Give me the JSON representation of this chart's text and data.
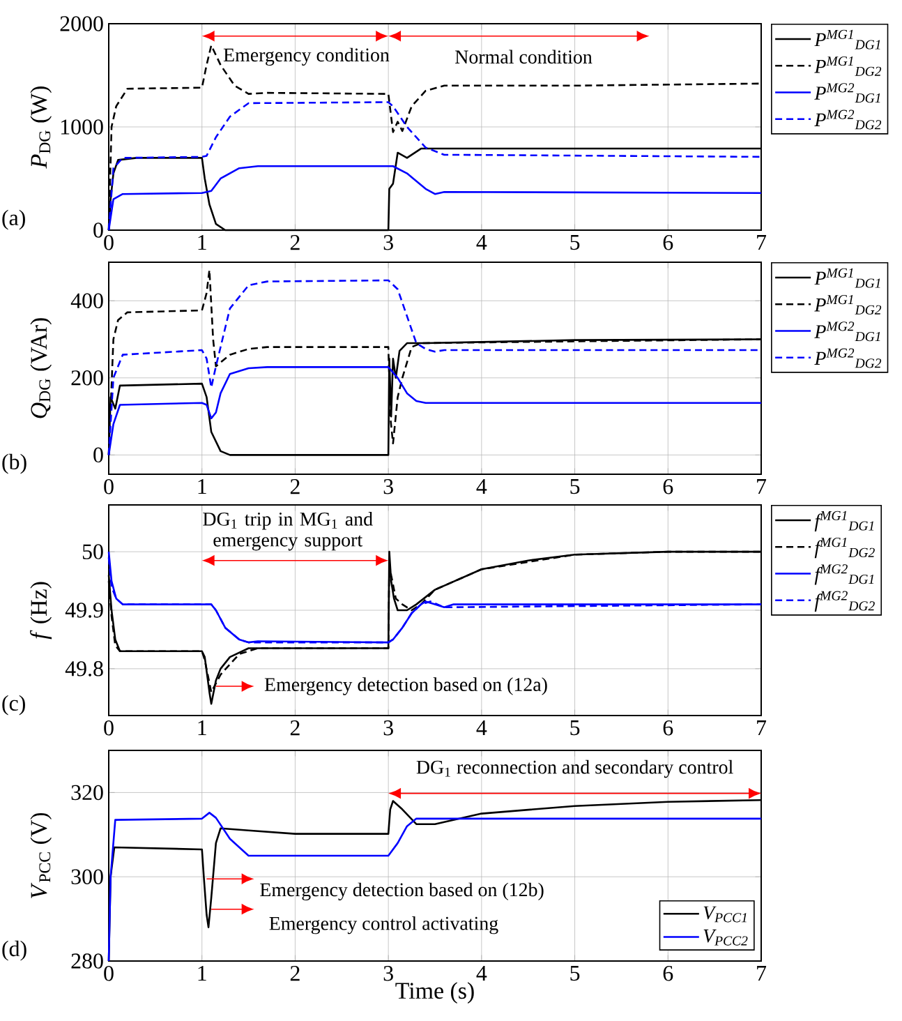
{
  "chart_data": [
    {
      "type": "line",
      "ylabel": "*P*$_{DG}$ (W)",
      "xlim": [
        0,
        7
      ],
      "xticks": [
        0,
        1,
        2,
        3,
        4,
        5,
        6,
        7
      ],
      "ylim": [
        0,
        2000
      ],
      "yticks": [
        0,
        1000,
        2000
      ],
      "grid": true,
      "legend": "right",
      "annotations": [
        "(a)",
        "Emergency condition",
        "Normal condition"
      ],
      "series": [
        {
          "name": "P$^{MG1}$$_{DG1}$",
          "color": "#000000",
          "line_style": "solid",
          "x": [
            0,
            0.02,
            0.05,
            0.1,
            0.3,
            1.0,
            1.03,
            1.08,
            1.15,
            1.25,
            1.5,
            3.0,
            3.01,
            3.05,
            3.1,
            3.2,
            3.35,
            4,
            7
          ],
          "values": [
            0,
            300,
            550,
            680,
            700,
            700,
            500,
            250,
            60,
            0,
            0,
            0,
            400,
            450,
            750,
            700,
            790,
            790,
            790
          ]
        },
        {
          "name": "P$^{MG1}$$_{DG2}$",
          "color": "#000000",
          "line_style": "dashed",
          "x": [
            0,
            0.03,
            0.08,
            0.2,
            1.0,
            1.05,
            1.1,
            1.2,
            1.35,
            1.5,
            1.7,
            3.0,
            3.05,
            3.1,
            3.15,
            3.25,
            3.4,
            3.6,
            5,
            7
          ],
          "values": [
            0,
            1000,
            1200,
            1370,
            1380,
            1600,
            1790,
            1600,
            1400,
            1320,
            1330,
            1320,
            950,
            1050,
            960,
            1200,
            1350,
            1400,
            1400,
            1420
          ]
        },
        {
          "name": "P$^{MG2}$$_{DG1}$",
          "color": "#0000ff",
          "line_style": "solid",
          "x": [
            0,
            0.05,
            0.15,
            1.0,
            1.1,
            1.2,
            1.4,
            1.6,
            3.0,
            3.05,
            3.2,
            3.4,
            3.5,
            3.6,
            7
          ],
          "values": [
            0,
            300,
            350,
            360,
            380,
            500,
            600,
            620,
            620,
            620,
            550,
            400,
            350,
            370,
            360
          ]
        },
        {
          "name": "P$^{MG2}$$_{DG2}$",
          "color": "#0000ff",
          "line_style": "dashed",
          "x": [
            0,
            0.05,
            0.15,
            1.0,
            1.05,
            1.15,
            1.3,
            1.5,
            3.0,
            3.05,
            3.2,
            3.4,
            3.6,
            3.7,
            7
          ],
          "values": [
            0,
            600,
            700,
            710,
            720,
            900,
            1100,
            1230,
            1240,
            1200,
            1000,
            800,
            730,
            730,
            710
          ]
        }
      ]
    },
    {
      "type": "line",
      "ylabel": "*Q*$_{DG}$ (VAr)",
      "xlim": [
        0,
        7
      ],
      "xticks": [
        0,
        1,
        2,
        3,
        4,
        5,
        6,
        7
      ],
      "ylim": [
        -50,
        500
      ],
      "yticks": [
        0,
        200,
        400
      ],
      "grid": true,
      "legend": "right",
      "annotations": [
        "(b)"
      ],
      "series": [
        {
          "name": "P$^{MG1}$$_{DG1}$",
          "color": "#000000",
          "line_style": "solid",
          "x": [
            0,
            0.02,
            0.07,
            0.12,
            1.0,
            1.05,
            1.1,
            1.2,
            1.3,
            3.0,
            3.01,
            3.03,
            3.05,
            3.08,
            3.12,
            3.2,
            3.4,
            4,
            5,
            7
          ],
          "values": [
            0,
            150,
            120,
            180,
            185,
            150,
            60,
            10,
            0,
            0,
            250,
            100,
            250,
            200,
            270,
            290,
            290,
            293,
            298,
            300
          ]
        },
        {
          "name": "P$^{MG1}$$_{DG2}$",
          "color": "#000000",
          "line_style": "dashed",
          "x": [
            0,
            0.05,
            0.1,
            0.2,
            1.0,
            1.05,
            1.08,
            1.12,
            1.15,
            1.3,
            1.5,
            1.7,
            3.0,
            3.02,
            3.05,
            3.1,
            3.15,
            3.25,
            3.35,
            4,
            7
          ],
          "values": [
            0,
            300,
            350,
            370,
            375,
            420,
            480,
            300,
            230,
            260,
            275,
            280,
            280,
            100,
            30,
            150,
            200,
            280,
            290,
            292,
            300
          ]
        },
        {
          "name": "P$^{MG2}$$_{DG1}$",
          "color": "#0000ff",
          "line_style": "solid",
          "x": [
            0,
            0.05,
            0.12,
            1.0,
            1.05,
            1.1,
            1.15,
            1.2,
            1.3,
            1.5,
            1.7,
            3.0,
            3.1,
            3.2,
            3.3,
            3.4,
            7
          ],
          "values": [
            0,
            80,
            130,
            135,
            130,
            95,
            110,
            160,
            210,
            225,
            228,
            228,
            200,
            160,
            140,
            135,
            135
          ]
        },
        {
          "name": "P$^{MG2}$$_{DG2}$",
          "color": "#0000ff",
          "line_style": "dashed",
          "x": [
            0,
            0.05,
            0.15,
            1.0,
            1.05,
            1.1,
            1.15,
            1.3,
            1.5,
            1.7,
            3.0,
            3.1,
            3.2,
            3.3,
            3.4,
            3.5,
            3.6,
            7
          ],
          "values": [
            0,
            200,
            260,
            272,
            250,
            175,
            230,
            380,
            440,
            450,
            453,
            430,
            360,
            290,
            275,
            268,
            272,
            272
          ]
        }
      ]
    },
    {
      "type": "line",
      "ylabel": "*f* (Hz)",
      "xlim": [
        0,
        7
      ],
      "xticks": [
        0,
        1,
        2,
        3,
        4,
        5,
        6,
        7
      ],
      "ylim": [
        49.72,
        50.08
      ],
      "yticks": [
        49.8,
        49.9,
        50
      ],
      "grid": true,
      "legend": "right",
      "annotations": [
        "(c)",
        "DG$_{1}$ trip in MG$_{1}$ and emergency support",
        "Emergency detection based on (12a)"
      ],
      "series": [
        {
          "name": "f$^{MG1}$$_{DG1}$",
          "color": "#000000",
          "line_style": "solid",
          "x": [
            0,
            0.03,
            0.07,
            0.12,
            1.0,
            1.03,
            1.08,
            1.1,
            1.15,
            1.2,
            1.3,
            1.5,
            3.0,
            3.01,
            3.03,
            3.06,
            3.1,
            3.2,
            3.3,
            3.5,
            4,
            4.5,
            5,
            6,
            7
          ],
          "values": [
            49.96,
            49.9,
            49.85,
            49.83,
            49.83,
            49.82,
            49.76,
            49.74,
            49.78,
            49.8,
            49.82,
            49.835,
            49.835,
            50.0,
            49.95,
            49.92,
            49.9,
            49.9,
            49.91,
            49.935,
            49.97,
            49.985,
            49.995,
            50.0,
            50.0
          ]
        },
        {
          "name": "f$^{MG1}$$_{DG2}$",
          "color": "#000000",
          "line_style": "dashed",
          "x": [
            0,
            0.03,
            0.07,
            0.12,
            1.0,
            1.03,
            1.1,
            1.2,
            1.4,
            1.6,
            3.0,
            3.01,
            3.03,
            3.08,
            3.15,
            3.25,
            3.35,
            3.5,
            4,
            5,
            6,
            7
          ],
          "values": [
            49.95,
            49.89,
            49.84,
            49.83,
            49.83,
            49.815,
            49.76,
            49.79,
            49.825,
            49.835,
            49.835,
            49.98,
            49.96,
            49.92,
            49.91,
            49.9,
            49.91,
            49.935,
            49.97,
            49.995,
            50.0,
            50.0
          ]
        },
        {
          "name": "f$^{MG2}$$_{DG1}$",
          "color": "#0000ff",
          "line_style": "solid",
          "x": [
            0,
            0.03,
            0.08,
            0.15,
            1.1,
            1.15,
            1.25,
            1.4,
            1.5,
            1.6,
            3.0,
            3.05,
            3.15,
            3.25,
            3.35,
            3.4,
            3.5,
            3.6,
            3.7,
            7
          ],
          "values": [
            50.0,
            49.95,
            49.92,
            49.91,
            49.91,
            49.9,
            49.87,
            49.85,
            49.845,
            49.847,
            49.845,
            49.85,
            49.87,
            49.895,
            49.91,
            49.915,
            49.91,
            49.905,
            49.91,
            49.91
          ]
        },
        {
          "name": "f$^{MG2}$$_{DG2}$",
          "color": "#0000ff",
          "line_style": "dashed",
          "x": [
            0,
            0.03,
            0.08,
            0.15,
            1.1,
            1.15,
            1.25,
            1.4,
            1.5,
            3.0,
            3.05,
            3.15,
            3.25,
            3.35,
            3.45,
            3.6,
            7
          ],
          "values": [
            49.99,
            49.94,
            49.92,
            49.91,
            49.91,
            49.9,
            49.87,
            49.85,
            49.845,
            49.845,
            49.85,
            49.87,
            49.895,
            49.91,
            49.915,
            49.905,
            49.91
          ]
        }
      ]
    },
    {
      "type": "line",
      "ylabel": "*V*$_{PCC}$ (V)",
      "xlabel": "Time (s)",
      "xlim": [
        0,
        7
      ],
      "xticks": [
        0,
        1,
        2,
        3,
        4,
        5,
        6,
        7
      ],
      "ylim": [
        280,
        330
      ],
      "yticks": [
        280,
        300,
        320
      ],
      "grid": true,
      "legend": "bottom right",
      "annotations": [
        "(d)",
        "DG$_{1}$ reconnection and secondary control",
        "Emergency detection based on (12b)",
        "Emergency control activating"
      ],
      "series": [
        {
          "name": "V$_{PCC1}$",
          "color": "#000000",
          "line_style": "solid",
          "x": [
            0,
            0.02,
            0.06,
            1.0,
            1.02,
            1.05,
            1.07,
            1.1,
            1.15,
            1.2,
            1.5,
            2,
            3.0,
            3.02,
            3.05,
            3.15,
            3.3,
            3.5,
            4,
            5,
            6,
            7
          ],
          "values": [
            280,
            300,
            307,
            306.5,
            300,
            291,
            288,
            295,
            308,
            311.5,
            311,
            310.2,
            310.2,
            316,
            318,
            316,
            312.5,
            312.5,
            315,
            316.8,
            317.8,
            318.2
          ]
        },
        {
          "name": "V$_{PCC2}$",
          "color": "#0000ff",
          "line_style": "solid",
          "x": [
            0,
            0.02,
            0.07,
            1.0,
            1.08,
            1.15,
            1.3,
            1.5,
            3.0,
            3.1,
            3.2,
            3.3,
            7
          ],
          "values": [
            280,
            300,
            313.5,
            313.8,
            315.2,
            314,
            309,
            305,
            305,
            308,
            312,
            313.8,
            313.8
          ]
        }
      ]
    }
  ]
}
